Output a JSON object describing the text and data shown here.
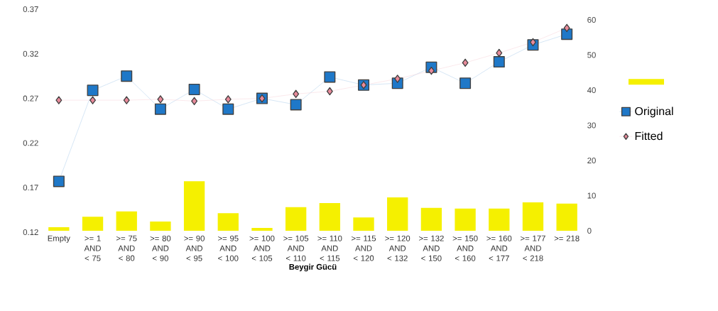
{
  "chart_data": {
    "type": "line",
    "xlabel": "Beygir Gücü",
    "categories": [
      "Empty",
      ">= 1 AND < 75",
      ">= 75 AND < 80",
      ">= 80 AND < 90",
      ">= 90 AND < 95",
      ">= 95 AND < 100",
      ">= 100 AND < 105",
      ">= 105 AND < 110",
      ">= 110 AND < 115",
      ">= 115 AND < 120",
      ">= 120 AND < 132",
      ">= 132 AND < 150",
      ">= 150 AND < 160",
      ">= 160 AND < 177",
      ">= 177 AND < 218",
      ">= 218"
    ],
    "series": [
      {
        "type": "bar",
        "axis": "y2",
        "color": "#f5f000",
        "values": [
          1.0,
          4.0,
          5.5,
          2.6,
          14.1,
          5.0,
          0.8,
          6.7,
          7.9,
          3.8,
          9.5,
          6.5,
          6.3,
          6.3,
          8.1,
          7.7
        ]
      },
      {
        "name": "Original",
        "marker": "square",
        "color": "#1f78c8",
        "values": [
          0.177,
          0.279,
          0.295,
          0.258,
          0.28,
          0.258,
          0.27,
          0.263,
          0.294,
          0.285,
          0.287,
          0.305,
          0.287,
          0.311,
          0.33,
          0.342
        ]
      },
      {
        "name": "Fitted",
        "marker": "diamond",
        "color": "#e88a9a",
        "values": [
          0.268,
          0.268,
          0.268,
          0.269,
          0.267,
          0.269,
          0.27,
          0.275,
          0.278,
          0.285,
          0.292,
          0.301,
          0.31,
          0.321,
          0.333,
          0.349
        ]
      }
    ],
    "ylim": [
      0.12,
      0.37
    ],
    "yticks": [
      0.12,
      0.17,
      0.22,
      0.27,
      0.32,
      0.37
    ],
    "y2lim": [
      0,
      60
    ],
    "y2ticks": [
      0,
      10,
      20,
      30,
      40,
      50,
      60
    ],
    "legend": "right",
    "grid": false
  }
}
